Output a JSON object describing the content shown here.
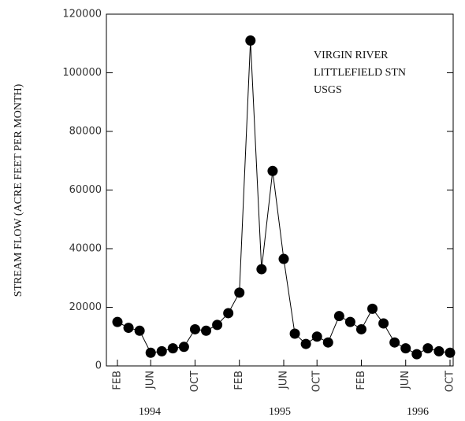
{
  "chart_data": {
    "type": "line",
    "y_label": "STREAM FLOW (ACRE FEET PER MONTH)",
    "annotations": [
      "VIRGIN RIVER",
      "LITTLEFIELD STN",
      "USGS"
    ],
    "year_labels": [
      "1994",
      "1995",
      "1996"
    ],
    "categories": [
      "FEB",
      null,
      null,
      "JUN",
      null,
      null,
      null,
      "OCT",
      null,
      null,
      null,
      "FEB",
      null,
      null,
      null,
      "JUN",
      null,
      null,
      "OCT",
      null,
      null,
      null,
      "FEB",
      null,
      null,
      null,
      "JUN",
      null,
      null,
      null,
      "OCT"
    ],
    "series": [
      {
        "name": "Stream flow",
        "color": "#000000",
        "values": [
          15000,
          13000,
          12000,
          4500,
          5000,
          6000,
          6500,
          12500,
          12000,
          14000,
          18000,
          25000,
          111000,
          33000,
          66500,
          36500,
          11000,
          7500,
          10000,
          8000,
          17000,
          15000,
          12500,
          19500,
          14500,
          8000,
          6000,
          4000,
          6000,
          5000,
          4500
        ]
      }
    ],
    "ylim": [
      0,
      120000
    ],
    "yticks": [
      0,
      20000,
      40000,
      60000,
      80000,
      100000,
      120000
    ]
  }
}
